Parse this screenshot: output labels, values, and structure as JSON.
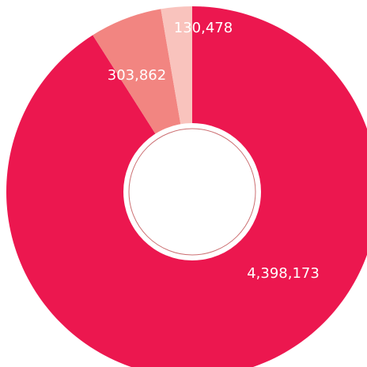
{
  "chart_data": {
    "type": "pie",
    "variant": "donut",
    "categories": [
      "",
      "",
      ""
    ],
    "values": [
      4398173,
      303862,
      130478
    ],
    "data_labels": [
      "4,398,173",
      "303,862",
      "130,478"
    ],
    "colors": [
      "#ec174f",
      "#f28581",
      "#f9c3bd"
    ],
    "title": "",
    "legend": "none",
    "center_ring_color": "#cc6f72"
  }
}
